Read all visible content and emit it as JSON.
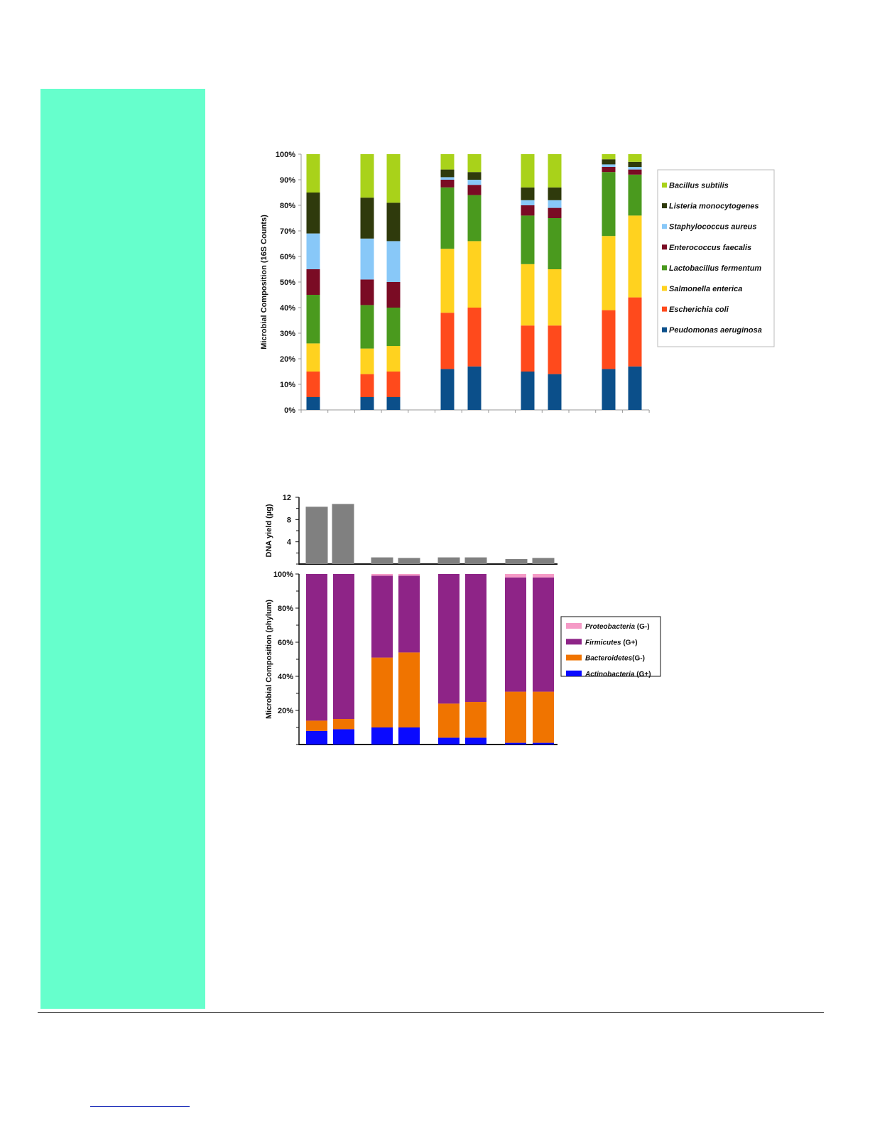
{
  "chart_data": [
    {
      "type": "bar",
      "stacked": true,
      "ylabel": "Microbial Composition (16S Counts)",
      "ylim": [
        0,
        100
      ],
      "yticks": [
        "0%",
        "10%",
        "20%",
        "30%",
        "40%",
        "50%",
        "60%",
        "70%",
        "80%",
        "90%",
        "100%"
      ],
      "grid": false,
      "legend_position": "right",
      "series": [
        {
          "name": "Peudomonas aeruginosa",
          "color": "#0b4f8a",
          "values": [
            5,
            5,
            5,
            16,
            17,
            15,
            14,
            16,
            17
          ]
        },
        {
          "name": "Escherichia coli",
          "color": "#ff4a1c",
          "values": [
            10,
            9,
            10,
            22,
            23,
            18,
            19,
            23,
            27
          ]
        },
        {
          "name": "Salmonella enterica",
          "color": "#ffd21f",
          "values": [
            11,
            10,
            10,
            25,
            26,
            24,
            22,
            29,
            32
          ]
        },
        {
          "name": "Lactobacillus fermentum",
          "color": "#4a9a1e",
          "values": [
            19,
            17,
            15,
            24,
            18,
            19,
            20,
            25,
            16
          ]
        },
        {
          "name": "Enterococcus faecalis",
          "color": "#7a0b24",
          "values": [
            10,
            10,
            10,
            3,
            4,
            4,
            4,
            2,
            2
          ]
        },
        {
          "name": "Staphylococcus aureus",
          "color": "#88c8f8",
          "values": [
            14,
            16,
            16,
            1,
            2,
            2,
            3,
            1,
            1
          ]
        },
        {
          "name": "Listeria monocytogenes",
          "color": "#2f3a0c",
          "values": [
            16,
            16,
            15,
            3,
            3,
            5,
            5,
            2,
            2
          ]
        },
        {
          "name": "Bacillus subtilis",
          "color": "#a9d21a",
          "values": [
            15,
            17,
            19,
            6,
            7,
            13,
            13,
            2,
            3
          ]
        }
      ]
    },
    {
      "type": "bar",
      "ylabel": "DNA yield (µg)",
      "ylim": [
        0,
        12
      ],
      "yticks": [
        "4",
        "8",
        "12"
      ],
      "series": [
        {
          "name": "",
          "color": "#808080",
          "values": [
            10.3,
            10.8,
            1.2,
            1.1,
            1.2,
            1.2,
            0.9,
            1.1
          ]
        }
      ]
    },
    {
      "type": "bar",
      "stacked": true,
      "ylabel": "Microbial Composition (phylum)",
      "ylim": [
        0,
        100
      ],
      "yticks": [
        "20%",
        "40%",
        "60%",
        "80%",
        "100%"
      ],
      "legend_position": "right",
      "series": [
        {
          "name": "Actinobacteria",
          "note": "(G+)",
          "color": "#0a0aff",
          "values": [
            8,
            9,
            10,
            10,
            4,
            4,
            1,
            1
          ]
        },
        {
          "name": "Bacteroidetes",
          "note": "(G-)",
          "color": "#f07400",
          "values": [
            6,
            6,
            41,
            44,
            20,
            21,
            30,
            30
          ]
        },
        {
          "name": "Firmicutes",
          "note": "(G+)",
          "color": "#8e2487",
          "values": [
            86,
            85,
            48,
            45,
            76,
            75,
            67,
            67
          ]
        },
        {
          "name": "Proteobacteria",
          "note": "(G-)",
          "color": "#f59ac6",
          "values": [
            0,
            0,
            1,
            1,
            0,
            0,
            2,
            2
          ]
        }
      ]
    }
  ]
}
